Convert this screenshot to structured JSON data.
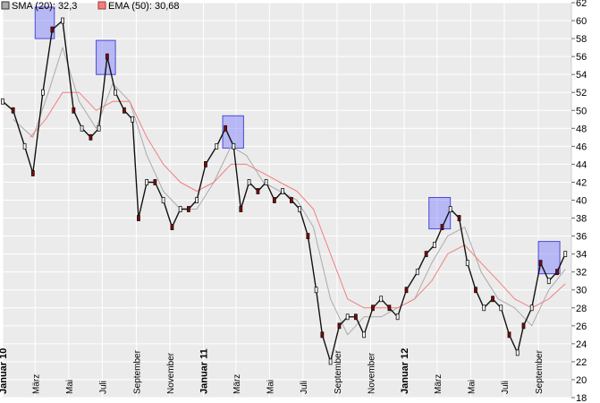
{
  "legend": {
    "sma_label": "SMA (20): 32,3",
    "ema_label": "EMA (50): 30,68",
    "sma_color": "#aaaaaa",
    "ema_color": "#f08080"
  },
  "chart_data": {
    "type": "line",
    "title": "",
    "xlabel": "",
    "ylabel": "",
    "ylim": [
      18,
      62
    ],
    "y_ticks": [
      18,
      20,
      22,
      24,
      26,
      28,
      30,
      32,
      34,
      36,
      38,
      40,
      42,
      44,
      46,
      48,
      50,
      52,
      54,
      56,
      58,
      60,
      62
    ],
    "x_domain": [
      "2010-01-01",
      "2012-10-31"
    ],
    "x_ticks": [
      {
        "label": "Januar 10",
        "date": "2010-01-01",
        "bold": true
      },
      {
        "label": "März",
        "date": "2010-03-01",
        "bold": false
      },
      {
        "label": "Mai",
        "date": "2010-05-01",
        "bold": false
      },
      {
        "label": "Juli",
        "date": "2010-07-01",
        "bold": false
      },
      {
        "label": "September",
        "date": "2010-09-01",
        "bold": false
      },
      {
        "label": "November",
        "date": "2010-11-01",
        "bold": false
      },
      {
        "label": "Januar 11",
        "date": "2011-01-01",
        "bold": true
      },
      {
        "label": "März",
        "date": "2011-03-01",
        "bold": false
      },
      {
        "label": "Mai",
        "date": "2011-05-01",
        "bold": false
      },
      {
        "label": "Juli",
        "date": "2011-07-01",
        "bold": false
      },
      {
        "label": "September",
        "date": "2011-09-01",
        "bold": false
      },
      {
        "label": "November",
        "date": "2011-11-01",
        "bold": false
      },
      {
        "label": "Januar 12",
        "date": "2012-01-01",
        "bold": true
      },
      {
        "label": "März",
        "date": "2012-03-01",
        "bold": false
      },
      {
        "label": "Mai",
        "date": "2012-05-01",
        "bold": false
      },
      {
        "label": "Juli",
        "date": "2012-07-01",
        "bold": false
      },
      {
        "label": "September",
        "date": "2012-09-01",
        "bold": false
      }
    ],
    "grid": true,
    "legend_position": "top-left",
    "price_series": {
      "name": "",
      "x": [
        "2010-01-01",
        "2010-01-20",
        "2010-02-10",
        "2010-02-25",
        "2010-03-15",
        "2010-04-01",
        "2010-04-20",
        "2010-05-10",
        "2010-05-25",
        "2010-06-10",
        "2010-06-25",
        "2010-07-10",
        "2010-07-25",
        "2010-08-10",
        "2010-08-25",
        "2010-09-05",
        "2010-09-20",
        "2010-10-05",
        "2010-10-20",
        "2010-11-05",
        "2010-11-20",
        "2010-12-05",
        "2010-12-20",
        "2011-01-05",
        "2011-01-25",
        "2011-02-10",
        "2011-02-25",
        "2011-03-10",
        "2011-03-25",
        "2011-04-10",
        "2011-04-25",
        "2011-05-10",
        "2011-05-25",
        "2011-06-10",
        "2011-06-25",
        "2011-07-10",
        "2011-07-25",
        "2011-08-05",
        "2011-08-20",
        "2011-09-05",
        "2011-09-20",
        "2011-10-05",
        "2011-10-20",
        "2011-11-05",
        "2011-11-20",
        "2011-12-05",
        "2011-12-20",
        "2012-01-05",
        "2012-01-25",
        "2012-02-10",
        "2012-02-25",
        "2012-03-10",
        "2012-03-25",
        "2012-04-10",
        "2012-04-25",
        "2012-05-10",
        "2012-05-25",
        "2012-06-10",
        "2012-06-25",
        "2012-07-10",
        "2012-07-25",
        "2012-08-05",
        "2012-08-20",
        "2012-09-05",
        "2012-09-20",
        "2012-10-05",
        "2012-10-20"
      ],
      "y": [
        51,
        50,
        46,
        43,
        52,
        59,
        60,
        50,
        48,
        47,
        48,
        56,
        52,
        50,
        49,
        38,
        42,
        42,
        40,
        37,
        39,
        39,
        40,
        44,
        46,
        48,
        46,
        39,
        42,
        41,
        42,
        40,
        41,
        40,
        39,
        36,
        30,
        25,
        22,
        26,
        27,
        27,
        25,
        28,
        29,
        28,
        27,
        30,
        32,
        34,
        35,
        37,
        39,
        38,
        33,
        30,
        28,
        29,
        28,
        25,
        23,
        26,
        28,
        33,
        31,
        32,
        34
      ]
    },
    "series": [
      {
        "name": "SMA (20): 32,3",
        "color": "#aaaaaa",
        "x": [
          "2010-01-20",
          "2010-02-25",
          "2010-03-25",
          "2010-04-20",
          "2010-05-20",
          "2010-06-20",
          "2010-07-20",
          "2010-08-20",
          "2010-09-20",
          "2010-10-20",
          "2010-11-20",
          "2010-12-20",
          "2011-01-20",
          "2011-02-20",
          "2011-03-20",
          "2011-04-20",
          "2011-05-20",
          "2011-06-20",
          "2011-07-20",
          "2011-08-20",
          "2011-09-20",
          "2011-10-20",
          "2011-11-20",
          "2011-12-20",
          "2012-01-20",
          "2012-02-20",
          "2012-03-20",
          "2012-04-20",
          "2012-05-20",
          "2012-06-20",
          "2012-07-20",
          "2012-08-20",
          "2012-09-20",
          "2012-10-20"
        ],
        "y": [
          49,
          47,
          52,
          57,
          51,
          48,
          53,
          51,
          45,
          41,
          39,
          39,
          42,
          46,
          45,
          42,
          41,
          40,
          37,
          29,
          25,
          27,
          27,
          28,
          29,
          33,
          36,
          37,
          32,
          29,
          28,
          26,
          30,
          32.3
        ]
      },
      {
        "name": "EMA (50): 30,68",
        "color": "#f08080",
        "x": [
          "2010-02-20",
          "2010-03-20",
          "2010-04-20",
          "2010-05-20",
          "2010-06-20",
          "2010-07-20",
          "2010-08-20",
          "2010-09-20",
          "2010-10-20",
          "2010-11-20",
          "2010-12-20",
          "2011-01-20",
          "2011-02-20",
          "2011-03-20",
          "2011-04-20",
          "2011-05-20",
          "2011-06-20",
          "2011-07-20",
          "2011-08-20",
          "2011-09-20",
          "2011-10-20",
          "2011-11-20",
          "2011-12-20",
          "2012-01-20",
          "2012-02-20",
          "2012-03-20",
          "2012-04-20",
          "2012-05-20",
          "2012-06-20",
          "2012-07-20",
          "2012-08-20",
          "2012-09-20",
          "2012-10-20"
        ],
        "y": [
          47,
          49,
          52,
          52,
          50,
          51,
          51,
          47,
          44,
          42,
          41,
          42,
          44,
          44,
          43,
          42,
          41,
          39,
          34,
          29,
          28,
          28,
          28,
          29,
          31,
          34,
          35,
          33,
          31,
          29,
          28,
          29,
          30.68
        ]
      }
    ],
    "highlights": [
      {
        "x_start": "2010-03-01",
        "x_end": "2010-04-05",
        "y_low": 58,
        "y_high": 61.5
      },
      {
        "x_start": "2010-06-20",
        "x_end": "2010-07-25",
        "y_low": 54,
        "y_high": 57.8
      },
      {
        "x_start": "2011-02-05",
        "x_end": "2011-03-15",
        "y_low": 45.8,
        "y_high": 49.4
      },
      {
        "x_start": "2012-02-15",
        "x_end": "2012-03-25",
        "y_low": 36.8,
        "y_high": 40.3
      },
      {
        "x_start": "2012-09-01",
        "x_end": "2012-10-10",
        "y_low": 31.8,
        "y_high": 35.4
      }
    ]
  }
}
